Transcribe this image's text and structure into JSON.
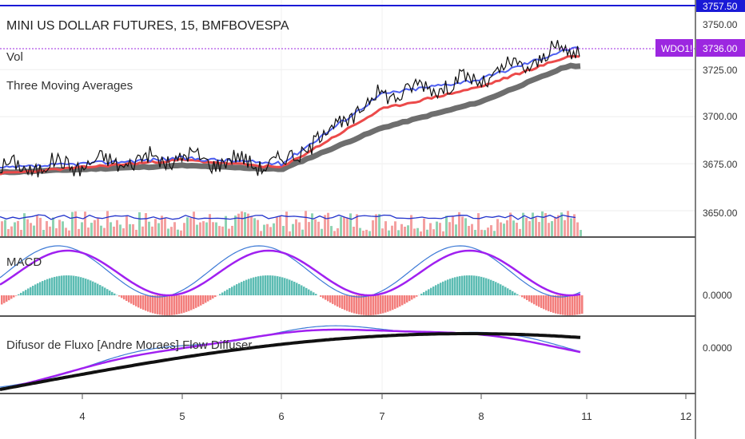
{
  "header": {
    "title": "MINI US DOLLAR FUTURES, 15, BMFBOVESPA",
    "vol_label": "Vol",
    "ma_label": "Three Moving Averages"
  },
  "price_axis": {
    "ticks": [
      "3750.00",
      "3725.00",
      "3700.00",
      "3675.00",
      "3650.00"
    ],
    "top_tag": "3757.50",
    "cut_tick": "3750.00",
    "last_price": "3736.00",
    "symbol_tag": "WDO1!",
    "top_tag_color": "#1a1ad6",
    "last_price_color": "#9c27e0"
  },
  "macd_panel": {
    "label": "MACD",
    "zero_tick": "0.0000"
  },
  "flow_panel": {
    "label": "Difusor de Fluxo [Andre Moraes]   Flow Diffuser",
    "zero_tick": "0.0000"
  },
  "time_axis": {
    "ticks": [
      "4",
      "5",
      "6",
      "7",
      "8",
      "11",
      "12"
    ]
  },
  "chart_data": {
    "type": "line",
    "x": [
      4,
      5,
      6,
      7,
      8,
      11
    ],
    "series": [
      {
        "values": [
          3675,
          3678,
          3675,
          3712,
          3720,
          3736
        ]
      },
      {
        "values": [
          3673,
          3677,
          3673,
          3704,
          3716,
          3732
        ]
      },
      {
        "values": [
          3672,
          3674,
          3672,
          3694,
          3708,
          3727
        ]
      }
    ],
    "ylim": [
      3636,
      3762
    ],
    "colors": {
      "price": "#111111",
      "fast_ma": "#4d5ef0",
      "mid_ma": "#ec4a4a",
      "slow_ma": "#555555",
      "volume_up": "#8fd3b2",
      "volume_down": "#f4a0a0",
      "macd_line": "#3d7ad6",
      "signal_line": "#a020f0",
      "hist_pos": "#26a69a",
      "hist_neg": "#ef5350",
      "flow_line": "#111111"
    }
  }
}
